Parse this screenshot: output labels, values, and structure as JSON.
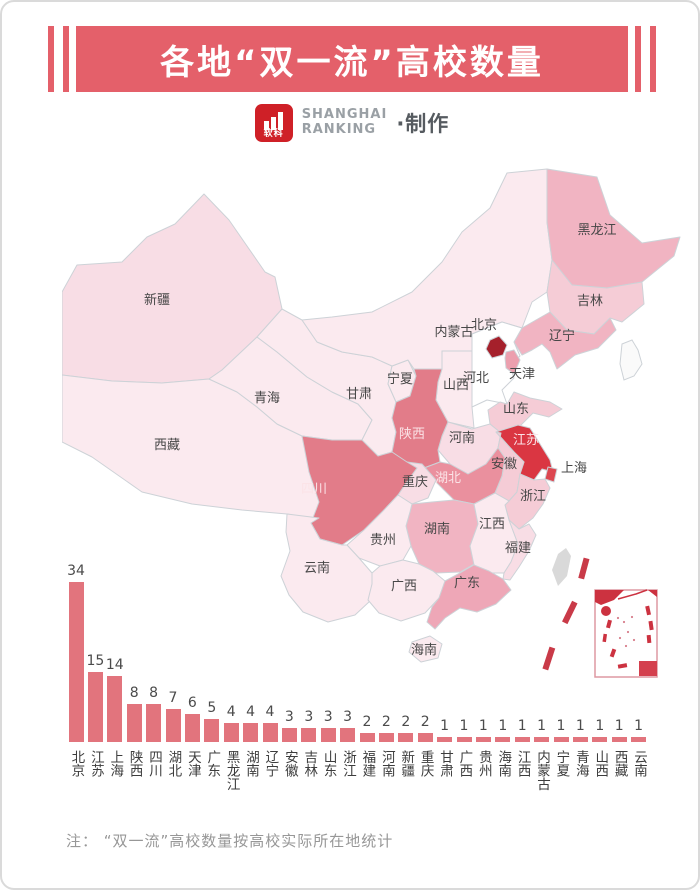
{
  "title": {
    "text": "各地“双一流”高校数量"
  },
  "logo": {
    "mark_text": "软科",
    "brand_line1": "SHANGHAI",
    "brand_line2": "RANKING",
    "suffix": "·制作"
  },
  "note": "注： “双一流”高校数量按高校实际所在地统计",
  "colors": {
    "banner": "#e4606a",
    "bar": "#e2747d",
    "logo_red": "#cf2027",
    "map_border": "#cdd2d7",
    "taiwan_fill": "#d9d9d9",
    "dash_red": "#c93a48"
  },
  "map": {
    "provinces": [
      {
        "name": "新疆",
        "value": 2
      },
      {
        "name": "西藏",
        "value": 1
      },
      {
        "name": "青海",
        "value": 1
      },
      {
        "name": "甘肃",
        "value": 1
      },
      {
        "name": "宁夏",
        "value": 1
      },
      {
        "name": "内蒙古",
        "value": 1
      },
      {
        "name": "黑龙江",
        "value": 4
      },
      {
        "name": "吉林",
        "value": 3
      },
      {
        "name": "辽宁",
        "value": 4
      },
      {
        "name": "河北",
        "value": 0
      },
      {
        "name": "山西",
        "value": 1
      },
      {
        "name": "山东",
        "value": 3
      },
      {
        "name": "河南",
        "value": 2
      },
      {
        "name": "陕西",
        "value": 8
      },
      {
        "name": "北京",
        "value": 34
      },
      {
        "name": "天津",
        "value": 6
      },
      {
        "name": "江苏",
        "value": 15
      },
      {
        "name": "安徽",
        "value": 3
      },
      {
        "name": "浙江",
        "value": 3
      },
      {
        "name": "上海",
        "value": 14
      },
      {
        "name": "湖北",
        "value": 7
      },
      {
        "name": "重庆",
        "value": 2
      },
      {
        "name": "四川",
        "value": 8
      },
      {
        "name": "湖南",
        "value": 4
      },
      {
        "name": "江西",
        "value": 1
      },
      {
        "name": "贵州",
        "value": 1
      },
      {
        "name": "云南",
        "value": 1
      },
      {
        "name": "广西",
        "value": 1
      },
      {
        "name": "广东",
        "value": 5
      },
      {
        "name": "福建",
        "value": 2
      },
      {
        "name": "海南",
        "value": 1
      }
    ],
    "no_data_regions": [
      {
        "name": "台湾"
      }
    ],
    "color_scale": {
      "0": "#ffffff",
      "1": "#fbeaef",
      "2": "#f8dde5",
      "3": "#f5ccd6",
      "4": "#f1b4c2",
      "5": "#eea7b7",
      "6": "#ec9fae",
      "7": "#ea909e",
      "8": "#e27c89",
      "14": "#dc4750",
      "15": "#da3642",
      "34": "#a5202b"
    }
  },
  "chart_data": {
    "type": "bar",
    "title": "各地“双一流”高校数量",
    "categories": [
      "北京",
      "江苏",
      "上海",
      "陕西",
      "四川",
      "湖北",
      "天津",
      "广东",
      "黑龙江",
      "湖南",
      "辽宁",
      "安徽",
      "吉林",
      "山东",
      "浙江",
      "福建",
      "河南",
      "新疆",
      "重庆",
      "甘肃",
      "广西",
      "贵州",
      "海南",
      "江西",
      "内蒙古",
      "宁夏",
      "青海",
      "山西",
      "西藏",
      "云南"
    ],
    "values": [
      34,
      15,
      14,
      8,
      8,
      7,
      6,
      5,
      4,
      4,
      4,
      3,
      3,
      3,
      3,
      2,
      2,
      2,
      2,
      1,
      1,
      1,
      1,
      1,
      1,
      1,
      1,
      1,
      1,
      1
    ],
    "xlabel": "",
    "ylabel": "",
    "ylim": [
      0,
      34
    ],
    "grid": false,
    "legend": false,
    "bar_color": "#e2747d",
    "value_label_color": "#4b4b4b"
  }
}
